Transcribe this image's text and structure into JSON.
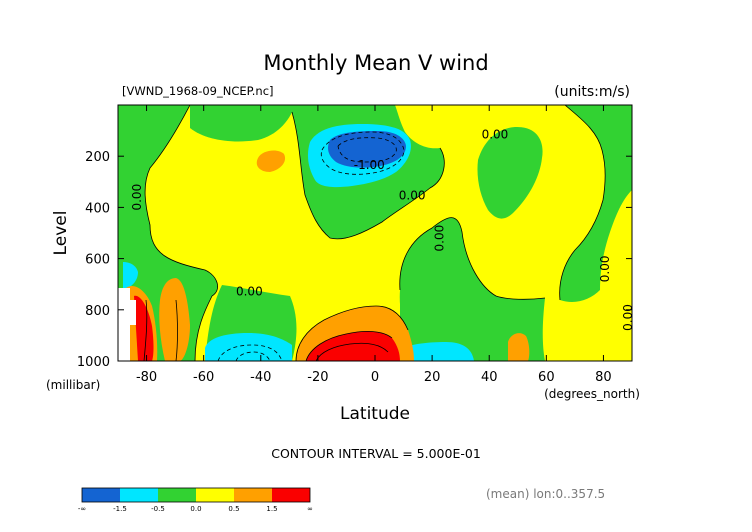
{
  "chart_data": {
    "type": "heatmap",
    "title": "Monthly Mean V wind",
    "file_label": "[VWND_1968-09_NCEP.nc]",
    "units_label": "(units:m/s)",
    "xlabel": "Latitude",
    "x_units": "(degrees_north)",
    "ylabel": "Level",
    "y_units": "(millibar)",
    "xlim": [
      -90,
      90
    ],
    "ylim": [
      1000,
      0
    ],
    "x_ticks": [
      "-80",
      "-60",
      "-40",
      "-20",
      "0",
      "20",
      "40",
      "60",
      "80"
    ],
    "x_tick_values": [
      -80,
      -60,
      -40,
      -20,
      0,
      20,
      40,
      60,
      80
    ],
    "y_ticks": [
      "200",
      "400",
      "600",
      "800",
      "1000"
    ],
    "y_tick_values": [
      200,
      400,
      600,
      800,
      1000
    ],
    "contour_interval_text": "CONTOUR INTERVAL = 5.000E-01",
    "footer_text": "(mean) lon:0..357.5",
    "contour_labels": [
      {
        "text": "0.00",
        "x": 42,
        "y": 130
      },
      {
        "text": "-1.00",
        "x": -2,
        "y": 250
      },
      {
        "text": "0.00",
        "x": 13,
        "y": 370
      },
      {
        "text": "0.00",
        "x": -82,
        "y": 360
      },
      {
        "text": "0.00",
        "x": 24,
        "y": 520
      },
      {
        "text": "0.00",
        "x": -44,
        "y": 745
      },
      {
        "text": "0.00",
        "x": 82,
        "y": 640
      },
      {
        "text": "0.00",
        "x": 90,
        "y": 830
      }
    ],
    "legend": {
      "colors": [
        "#1464d2",
        "#00e6ff",
        "#32d232",
        "#ffff00",
        "#ffa000",
        "#fa0000"
      ],
      "boundaries": [
        "-∞",
        "-1.5",
        "-0.5",
        "0.0",
        "0.5",
        "1.5",
        "∞"
      ]
    },
    "regions": [
      {
        "level": "blue",
        "color": "#1464d2",
        "cx": 2,
        "cy": 185,
        "rx": 10,
        "ry": 55
      },
      {
        "level": "cyan",
        "color": "#00e6ff",
        "cx": 2,
        "cy": 215,
        "rx": 18,
        "ry": 110
      },
      {
        "level": "cyan",
        "color": "#00e6ff",
        "cx": -45,
        "cy": 1000,
        "rx": 20,
        "ry": 120
      },
      {
        "level": "cyan",
        "color": "#00e6ff",
        "cx": 26,
        "cy": 1000,
        "rx": 12,
        "ry": 70
      },
      {
        "level": "cyan",
        "color": "#00e6ff",
        "cx": -86,
        "cy": 640,
        "rx": 4,
        "ry": 60
      },
      {
        "level": "orange",
        "color": "#ffa000",
        "cx": -4,
        "cy": 950,
        "rx": 28,
        "ry": 200
      },
      {
        "level": "orange",
        "color": "#ffa000",
        "cx": -72,
        "cy": 820,
        "rx": 5,
        "ry": 160
      },
      {
        "level": "orange",
        "color": "#ffa000",
        "cx": -82,
        "cy": 880,
        "rx": 6,
        "ry": 180
      },
      {
        "level": "orange",
        "color": "#ffa000",
        "cx": 50,
        "cy": 970,
        "rx": 4,
        "ry": 80
      },
      {
        "level": "orange",
        "color": "#ffa000",
        "cx": -36,
        "cy": 215,
        "rx": 5,
        "ry": 35
      },
      {
        "level": "red",
        "color": "#fa0000",
        "cx": -5,
        "cy": 1000,
        "rx": 17,
        "ry": 110
      },
      {
        "level": "red",
        "color": "#fa0000",
        "cx": -81,
        "cy": 900,
        "rx": 3,
        "ry": 140
      }
    ]
  }
}
